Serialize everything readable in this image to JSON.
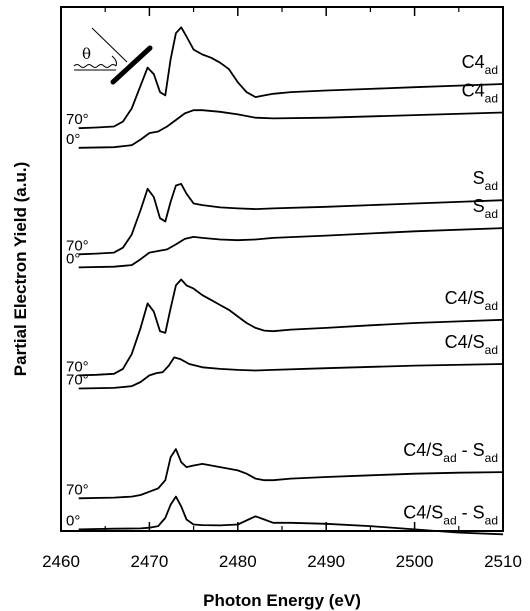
{
  "chart_data": {
    "type": "line",
    "title": "",
    "xlabel": "Photon Energy (eV)",
    "ylabel": "Partial Electron Yield (a.u.)",
    "xlim": [
      2460,
      2510
    ],
    "ylim": [
      0,
      16
    ],
    "x_ticks": [
      "2460",
      "2470",
      "2480",
      "2490",
      "2500",
      "2510"
    ],
    "inset_symbol": "θ",
    "y_ticks_shown": false,
    "grid": false,
    "legend": "none",
    "series": [
      {
        "name": "C4ad",
        "label_main": "C4",
        "label_sub": "ad",
        "angle_label": "70°",
        "x": [
          2462,
          2464,
          2466,
          2467,
          2468,
          2469,
          2469.8,
          2470.5,
          2471.2,
          2471.8,
          2472.4,
          2473.0,
          2473.6,
          2474.2,
          2475,
          2476,
          2477,
          2478,
          2479,
          2480,
          2481,
          2482,
          2483,
          2484,
          2486,
          2490,
          2495,
          2500,
          2505,
          2510
        ],
        "y": [
          12.3,
          12.32,
          12.35,
          12.5,
          12.9,
          13.6,
          14.15,
          13.95,
          13.4,
          13.3,
          14.4,
          15.2,
          15.38,
          15.1,
          14.7,
          14.55,
          14.45,
          14.3,
          14.1,
          13.7,
          13.4,
          13.25,
          13.3,
          13.35,
          13.4,
          13.45,
          13.5,
          13.55,
          13.6,
          13.65
        ]
      },
      {
        "name": "C4ad",
        "label_main": "C4",
        "label_sub": "ad",
        "angle_label": "0°",
        "x": [
          2462,
          2466,
          2468,
          2469,
          2470,
          2471,
          2472,
          2473,
          2474,
          2475,
          2476,
          2478,
          2480,
          2482,
          2484,
          2490,
          2500,
          2510
        ],
        "y": [
          11.7,
          11.72,
          11.78,
          11.95,
          12.15,
          12.2,
          12.35,
          12.55,
          12.75,
          12.85,
          12.85,
          12.8,
          12.72,
          12.62,
          12.6,
          12.62,
          12.7,
          12.78
        ]
      },
      {
        "name": "Sad",
        "label_main": "S",
        "label_sub": "ad",
        "angle_label": "70°",
        "x": [
          2462,
          2464,
          2466,
          2467,
          2468,
          2469,
          2469.8,
          2470.5,
          2471.2,
          2471.8,
          2472.4,
          2473.0,
          2473.6,
          2474.2,
          2475,
          2476,
          2478,
          2480,
          2482,
          2484,
          2490,
          2495,
          2500,
          2505,
          2510
        ],
        "y": [
          8.45,
          8.47,
          8.5,
          8.65,
          9.05,
          9.8,
          10.45,
          10.2,
          9.55,
          9.45,
          10.05,
          10.55,
          10.6,
          10.3,
          10.0,
          9.95,
          9.88,
          9.85,
          9.83,
          9.85,
          9.9,
          9.95,
          10.0,
          10.05,
          10.1
        ]
      },
      {
        "name": "Sad",
        "label_main": "S",
        "label_sub": "ad",
        "angle_label": "0°",
        "x": [
          2462,
          2466,
          2468,
          2469,
          2470,
          2471,
          2472,
          2473,
          2474,
          2475,
          2476,
          2478,
          2480,
          2482,
          2484,
          2490,
          2500,
          2510
        ],
        "y": [
          8.05,
          8.07,
          8.12,
          8.3,
          8.5,
          8.55,
          8.6,
          8.75,
          8.92,
          8.98,
          8.95,
          8.9,
          8.88,
          8.9,
          8.95,
          9.02,
          9.15,
          9.25
        ]
      },
      {
        "name": "C4/Sad",
        "label_main": "C4/S",
        "label_sub": "ad",
        "angle_label": "70°",
        "x": [
          2462,
          2464,
          2466,
          2467,
          2468,
          2469,
          2469.8,
          2470.5,
          2471.2,
          2471.8,
          2472.4,
          2473.0,
          2473.6,
          2474.2,
          2475,
          2476,
          2477,
          2478,
          2479,
          2480,
          2481,
          2482,
          2483,
          2484,
          2486,
          2490,
          2495,
          2500,
          2505,
          2510
        ],
        "y": [
          4.75,
          4.77,
          4.8,
          4.95,
          5.4,
          6.2,
          6.95,
          6.7,
          6.1,
          6.05,
          6.8,
          7.5,
          7.68,
          7.5,
          7.4,
          7.2,
          7.05,
          6.9,
          6.75,
          6.55,
          6.35,
          6.2,
          6.12,
          6.1,
          6.15,
          6.2,
          6.28,
          6.35,
          6.4,
          6.45
        ]
      },
      {
        "name": "C4/Sad",
        "label_main": "C4/S",
        "label_sub": "ad",
        "angle_label": "70°",
        "x": [
          2462,
          2466,
          2468,
          2469,
          2470,
          2470.8,
          2471.5,
          2472.2,
          2472.8,
          2473.5,
          2474.5,
          2476,
          2478,
          2480,
          2482,
          2484,
          2490,
          2500,
          2510
        ],
        "y": [
          4.35,
          4.37,
          4.42,
          4.55,
          4.75,
          4.82,
          4.85,
          5.05,
          5.3,
          5.25,
          5.1,
          5.0,
          4.95,
          4.92,
          4.9,
          4.92,
          4.97,
          5.05,
          5.1
        ]
      },
      {
        "name": "C4/Sad - Sad",
        "label_main": "C4/S",
        "label_sub": "ad",
        "label_minus": " - S",
        "label_sub2": "ad",
        "angle_label": "70°",
        "x": [
          2462,
          2466,
          2468,
          2469,
          2470,
          2471,
          2471.8,
          2472.4,
          2473.0,
          2473.6,
          2474.2,
          2475,
          2476,
          2477,
          2478,
          2479,
          2480,
          2481,
          2482,
          2483,
          2484,
          2486,
          2490,
          2495,
          2500,
          2505,
          2510
        ],
        "y": [
          1.0,
          1.02,
          1.05,
          1.1,
          1.2,
          1.3,
          1.55,
          2.25,
          2.5,
          2.1,
          1.95,
          2.0,
          2.05,
          2.0,
          1.95,
          1.9,
          1.85,
          1.75,
          1.6,
          1.55,
          1.55,
          1.6,
          1.65,
          1.7,
          1.75,
          1.78,
          1.8
        ]
      },
      {
        "name": "C4/Sad - Sad",
        "label_main": "C4/S",
        "label_sub": "ad",
        "label_minus": " - S",
        "label_sub2": "ad",
        "angle_label": "0°",
        "x": [
          2462,
          2466,
          2469,
          2470,
          2471,
          2471.8,
          2472.4,
          2473.0,
          2473.6,
          2474.2,
          2475,
          2476,
          2478,
          2480,
          2482,
          2483,
          2484,
          2486,
          2490,
          2495,
          2500,
          2505,
          2510
        ],
        "y": [
          0.05,
          0.07,
          0.08,
          0.1,
          0.15,
          0.4,
          0.8,
          1.05,
          0.75,
          0.35,
          0.2,
          0.18,
          0.17,
          0.2,
          0.45,
          0.35,
          0.25,
          0.25,
          0.22,
          0.15,
          0.05,
          -0.05,
          -0.1
        ]
      }
    ]
  }
}
